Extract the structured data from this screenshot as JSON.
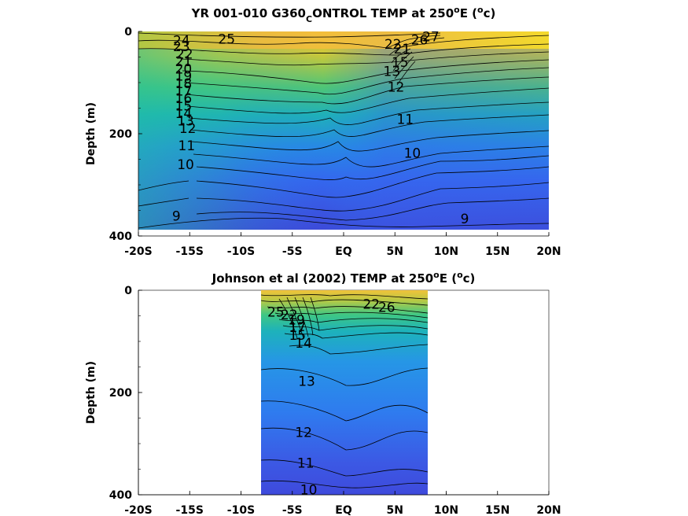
{
  "chart_data": [
    {
      "type": "contour",
      "title_main": "YR 001-010 G360",
      "title_sub": "C",
      "title_rest": "ONTROL TEMP at 250",
      "title_sup": "o",
      "title_end1": "E (",
      "title_sup2": "o",
      "title_end2": "c)",
      "ylabel": "Depth (m)",
      "xlabel": "",
      "x_ticks": [
        "-20S",
        "-15S",
        "-10S",
        "-5S",
        "EQ",
        "5N",
        "10N",
        "15N",
        "20N"
      ],
      "y_ticks": [
        "0",
        "200",
        "400"
      ],
      "xlim": [
        -20,
        20
      ],
      "ylim": [
        0,
        400
      ],
      "data_x_range": [
        -20,
        20
      ],
      "data_y_range": [
        0,
        390
      ],
      "contour_labels": [
        {
          "text": "24",
          "x": -15.8,
          "y": 18
        },
        {
          "text": "25",
          "x": -11.4,
          "y": 15
        },
        {
          "text": "23",
          "x": -15.8,
          "y": 30
        },
        {
          "text": "22",
          "x": -15.5,
          "y": 45
        },
        {
          "text": "21",
          "x": -15.6,
          "y": 60
        },
        {
          "text": "20",
          "x": -15.6,
          "y": 75
        },
        {
          "text": "19",
          "x": -15.6,
          "y": 90
        },
        {
          "text": "18",
          "x": -15.6,
          "y": 105
        },
        {
          "text": "17",
          "x": -15.6,
          "y": 120
        },
        {
          "text": "16",
          "x": -15.6,
          "y": 135
        },
        {
          "text": "15",
          "x": -15.6,
          "y": 150
        },
        {
          "text": "14",
          "x": -15.6,
          "y": 165
        },
        {
          "text": "13",
          "x": -15.4,
          "y": 180
        },
        {
          "text": "12",
          "x": -15.2,
          "y": 195
        },
        {
          "text": "11",
          "x": -15.3,
          "y": 230
        },
        {
          "text": "10",
          "x": -15.4,
          "y": 268
        },
        {
          "text": "9",
          "x": -16.3,
          "y": 372
        },
        {
          "text": "27",
          "x": 8.5,
          "y": 10
        },
        {
          "text": "26",
          "x": 7.4,
          "y": 17
        },
        {
          "text": "22",
          "x": 4.8,
          "y": 25
        },
        {
          "text": "21",
          "x": 5.7,
          "y": 35
        },
        {
          "text": "15",
          "x": 5.5,
          "y": 62
        },
        {
          "text": "13",
          "x": 4.7,
          "y": 80
        },
        {
          "text": "12",
          "x": 5.1,
          "y": 112
        },
        {
          "text": "11",
          "x": 6.0,
          "y": 177
        },
        {
          "text": "10",
          "x": 6.7,
          "y": 245
        },
        {
          "text": "9",
          "x": 11.8,
          "y": 378
        }
      ],
      "colormap": [
        "#3e4adc",
        "#2f7af0",
        "#1fa7d4",
        "#29c09c",
        "#9ecd4e",
        "#e5b83a",
        "#fbe024"
      ]
    },
    {
      "type": "contour",
      "title_main": "Johnson et al (2002) TEMP at 250",
      "title_sup": "o",
      "title_end1": "E (",
      "title_sup2": "o",
      "title_end2": "c)",
      "ylabel": "Depth (m)",
      "xlabel": "",
      "x_ticks": [
        "-20S",
        "-15S",
        "-10S",
        "-5S",
        "EQ",
        "5N",
        "10N",
        "15N",
        "20N"
      ],
      "y_ticks": [
        "0",
        "200",
        "400"
      ],
      "xlim": [
        -20,
        20
      ],
      "ylim": [
        0,
        400
      ],
      "data_x_range": [
        -8,
        8.2
      ],
      "data_y_range": [
        0,
        400
      ],
      "contour_labels": [
        {
          "text": "25",
          "x": -6.6,
          "y": 42
        },
        {
          "text": "22",
          "x": -5.3,
          "y": 48
        },
        {
          "text": "19",
          "x": -4.6,
          "y": 58
        },
        {
          "text": "17",
          "x": -4.5,
          "y": 72
        },
        {
          "text": "15",
          "x": -4.5,
          "y": 88
        },
        {
          "text": "14",
          "x": -3.9,
          "y": 103
        },
        {
          "text": "22",
          "x": 2.7,
          "y": 27
        },
        {
          "text": "26",
          "x": 4.2,
          "y": 33
        },
        {
          "text": "13",
          "x": -3.6,
          "y": 178
        },
        {
          "text": "12",
          "x": -3.9,
          "y": 278
        },
        {
          "text": "11",
          "x": -3.7,
          "y": 338
        },
        {
          "text": "10",
          "x": -3.4,
          "y": 390
        }
      ],
      "colormap": [
        "#3e4adc",
        "#2f7af0",
        "#1fa7d4",
        "#29c09c",
        "#9ecd4e",
        "#e5b83a",
        "#fbe024"
      ]
    }
  ]
}
